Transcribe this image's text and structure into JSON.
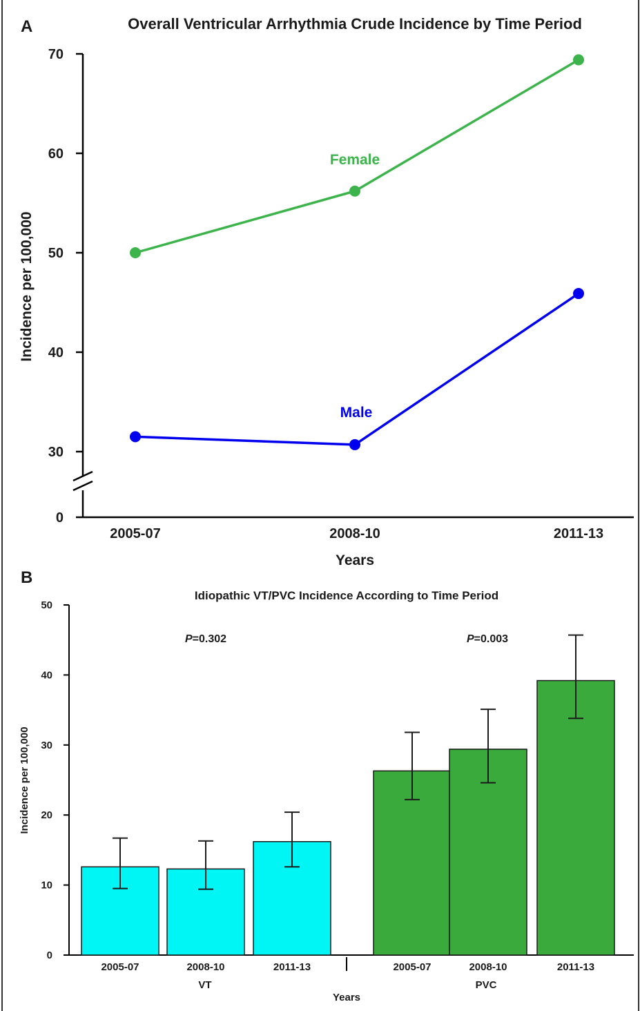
{
  "chart_data": [
    {
      "panel": "A",
      "type": "line",
      "title": "Overall Ventricular Arrhythmia Crude Incidence by Time Period",
      "xlabel": "Years",
      "ylabel": "Incidence per 100,000",
      "categories": [
        "2005-07",
        "2008-10",
        "2011-13"
      ],
      "yticks": [
        "0",
        "30",
        "40",
        "50",
        "60",
        "70"
      ],
      "ylim": [
        30,
        70
      ],
      "axis_break": true,
      "grid": false,
      "series": [
        {
          "name": "Female",
          "color": "#3cb44b",
          "values": [
            50.0,
            56.2,
            69.4
          ]
        },
        {
          "name": "Male",
          "color": "#0000ee",
          "values": [
            31.5,
            30.7,
            45.9
          ]
        }
      ]
    },
    {
      "panel": "B",
      "type": "bar",
      "title": "Idiopathic VT/PVC Incidence According to Time Period",
      "xlabel": "Years",
      "ylabel": "Incidence per 100,000",
      "ylim": [
        0,
        50
      ],
      "yticks": [
        "0",
        "10",
        "20",
        "30",
        "40",
        "50"
      ],
      "grid": false,
      "groups": [
        {
          "name": "VT",
          "color": "#00f5f5",
          "p_label": "P",
          "p_value": "=0.302",
          "categories": [
            "2005-07",
            "2008-10",
            "2011-13"
          ],
          "values": [
            12.6,
            12.3,
            16.2
          ],
          "error_low": [
            9.5,
            9.4,
            12.6
          ],
          "error_high": [
            16.7,
            16.3,
            20.4
          ]
        },
        {
          "name": "PVC",
          "color": "#3aaa3c",
          "p_label": "P",
          "p_value": "=0.003",
          "categories": [
            "2005-07",
            "2008-10",
            "2011-13"
          ],
          "values": [
            26.3,
            29.4,
            39.2
          ],
          "error_low": [
            22.2,
            24.6,
            33.8
          ],
          "error_high": [
            31.8,
            35.1,
            45.7
          ]
        }
      ]
    }
  ],
  "panels": {
    "a_letter": "A",
    "b_letter": "B"
  }
}
